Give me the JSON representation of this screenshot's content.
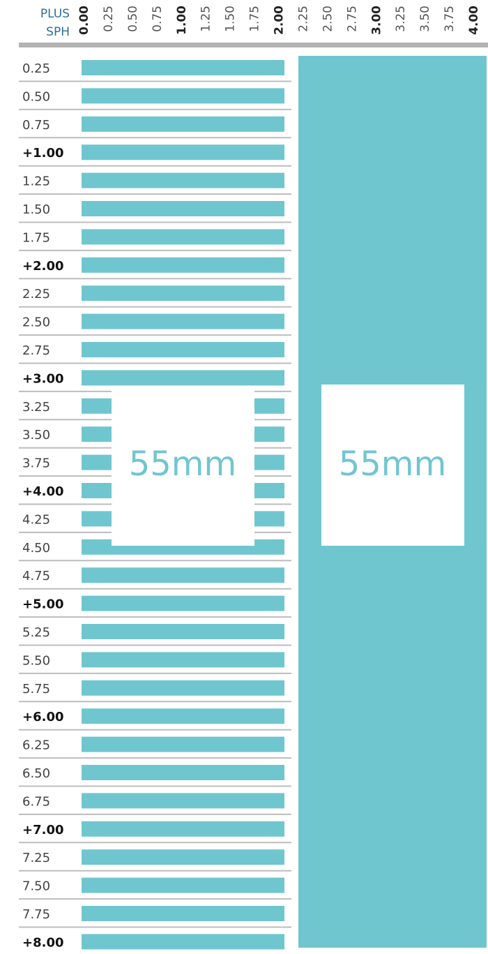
{
  "header": {
    "line1": "PLUS",
    "line2": "SPH"
  },
  "columns": [
    "0.00",
    "0.25",
    "0.50",
    "0.75",
    "1.00",
    "1.25",
    "1.50",
    "1.75",
    "2.00",
    "2.25",
    "2.50",
    "2.75",
    "3.00",
    "3.25",
    "3.50",
    "3.75",
    "4.00"
  ],
  "rows": [
    "0.25",
    "0.50",
    "0.75",
    "+1.00",
    "1.25",
    "1.50",
    "1.75",
    "+2.00",
    "2.25",
    "2.50",
    "2.75",
    "+3.00",
    "3.25",
    "3.50",
    "3.75",
    "+4.00",
    "4.25",
    "4.50",
    "4.75",
    "+5.00",
    "5.25",
    "5.50",
    "5.75",
    "+6.00",
    "6.25",
    "6.50",
    "6.75",
    "+7.00",
    "7.25",
    "7.50",
    "7.75",
    "+8.00"
  ],
  "zones": [
    "55mm",
    "55mm"
  ]
}
